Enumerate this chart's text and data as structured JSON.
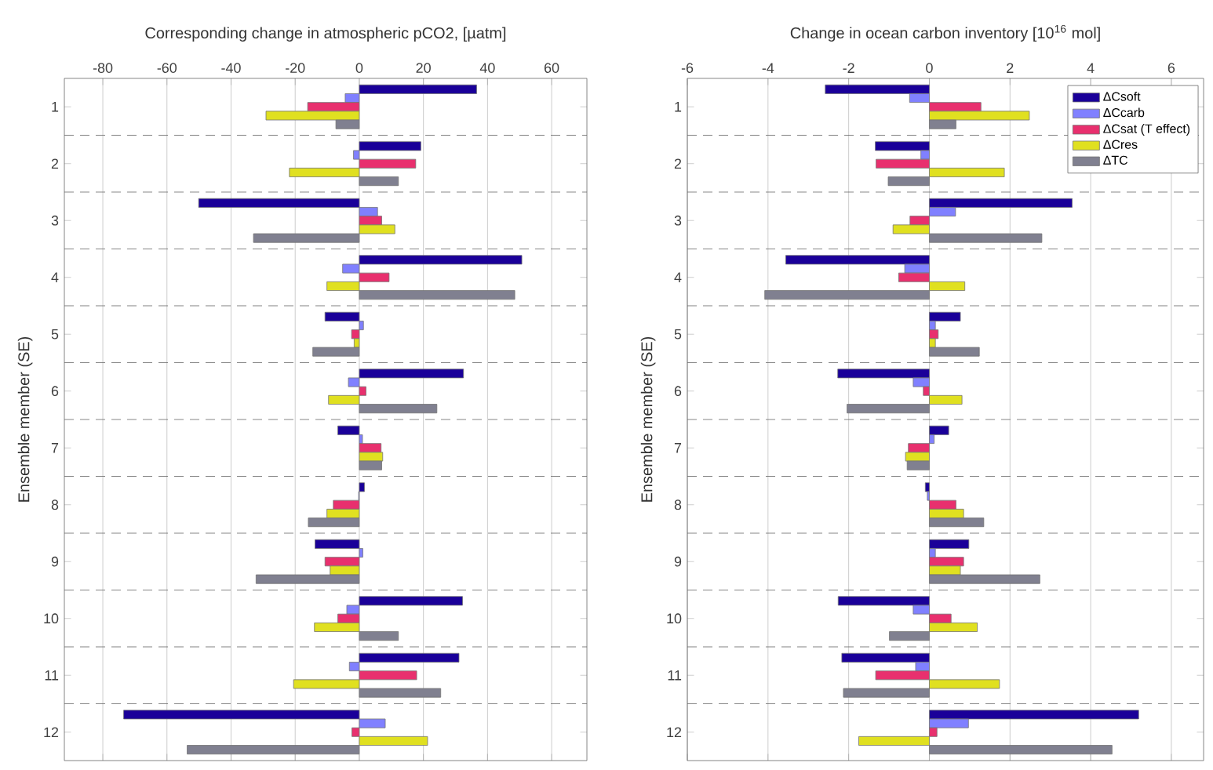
{
  "chart_data": [
    {
      "type": "bar",
      "orientation": "horizontal",
      "title": "Corresponding change in atmospheric pCO2, [µatm]",
      "ylabel": "Ensemble member (SE)",
      "categories": [
        "1",
        "2",
        "3",
        "4",
        "5",
        "6",
        "7",
        "8",
        "9",
        "10",
        "11",
        "12"
      ],
      "series": [
        {
          "color": "#1a0099",
          "values": [
            36.6,
            19.2,
            -50.1,
            50.7,
            -10.7,
            32.5,
            -6.7,
            1.6,
            -13.8,
            32.2,
            31.1,
            -73.5
          ]
        },
        {
          "color": "#8080ff",
          "values": [
            -4.4,
            -1.8,
            5.7,
            -5.2,
            1.3,
            -3.4,
            1.0,
            -0.2,
            1.1,
            -3.9,
            -3.1,
            8.1
          ]
        },
        {
          "color": "#e8306e",
          "values": [
            -16.1,
            17.6,
            7.0,
            9.3,
            -2.4,
            2.1,
            6.8,
            -8.1,
            -10.7,
            -6.7,
            17.9,
            -2.3
          ]
        },
        {
          "color": "#e0e020",
          "values": [
            -29.1,
            -21.8,
            11.1,
            -10.1,
            -1.6,
            -9.6,
            7.3,
            -10.1,
            -9.1,
            -14.0,
            -20.5,
            21.3
          ]
        },
        {
          "color": "#808090",
          "values": [
            -7.3,
            12.2,
            -33.0,
            48.5,
            -14.5,
            24.2,
            7.0,
            -15.9,
            -32.2,
            12.2,
            25.4,
            -53.7
          ]
        }
      ],
      "xlim": [
        -92,
        71
      ],
      "xticks": [
        -80,
        -60,
        -40,
        -20,
        0,
        20,
        40,
        60
      ],
      "grid": "x",
      "legend": false
    },
    {
      "type": "bar",
      "orientation": "horizontal",
      "title": "Change in ocean carbon inventory [10$^{16}$ mol]",
      "ylabel": "Ensemble member (SE)",
      "categories": [
        "1",
        "2",
        "3",
        "4",
        "5",
        "6",
        "7",
        "8",
        "9",
        "10",
        "11",
        "12"
      ],
      "series": [
        {
          "name": "ΔCsoft",
          "color": "#1a0099",
          "values": [
            -2.58,
            -1.34,
            3.54,
            -3.56,
            0.77,
            -2.27,
            0.48,
            -0.1,
            0.98,
            -2.26,
            -2.17,
            5.19
          ]
        },
        {
          "name": "ΔCcarb",
          "color": "#8080ff",
          "values": [
            -0.49,
            -0.21,
            0.65,
            -0.61,
            0.15,
            -0.4,
            0.12,
            -0.05,
            0.15,
            -0.4,
            -0.34,
            0.97
          ]
        },
        {
          "name": "ΔCsat (T effect)",
          "color": "#e8306e",
          "values": [
            1.28,
            -1.32,
            -0.48,
            -0.76,
            0.22,
            -0.15,
            -0.52,
            0.66,
            0.85,
            0.54,
            -1.33,
            0.19
          ]
        },
        {
          "name": "ΔCres",
          "color": "#e0e020",
          "values": [
            2.48,
            1.86,
            -0.9,
            0.88,
            0.15,
            0.81,
            -0.59,
            0.85,
            0.77,
            1.19,
            1.74,
            -1.75
          ]
        },
        {
          "name": "ΔTC",
          "color": "#808090",
          "values": [
            0.66,
            -1.02,
            2.79,
            -4.08,
            1.24,
            -2.04,
            -0.55,
            1.35,
            2.74,
            -0.99,
            -2.13,
            4.53
          ]
        }
      ],
      "xlim": [
        -6,
        6.8
      ],
      "xticks": [
        -6,
        -4,
        -2,
        0,
        2,
        4,
        6
      ],
      "grid": "x",
      "legend": "top right"
    }
  ]
}
